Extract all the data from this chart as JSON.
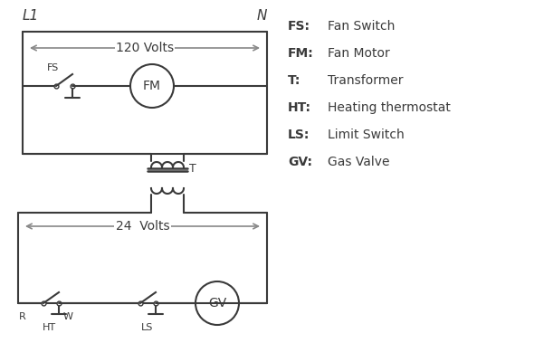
{
  "bg_color": "#ffffff",
  "line_color": "#3a3a3a",
  "arrow_color": "#888888",
  "legend_items": [
    [
      "FS:",
      "Fan Switch"
    ],
    [
      "FM:",
      "Fan Motor"
    ],
    [
      "T:",
      "Transformer"
    ],
    [
      "HT:",
      "Heating thermostat"
    ],
    [
      "LS:",
      "Limit Switch"
    ],
    [
      "GV:",
      "Gas Valve"
    ]
  ],
  "volts_120_label": "120 Volts",
  "volts_24_label": "24  Volts",
  "L1_label": "L1",
  "N_label": "N",
  "T_label": "T",
  "R_label": "R",
  "W_label": "W",
  "HT_label": "HT",
  "LS_label": "LS",
  "FS_label": "FS",
  "FM_label": "FM",
  "GV_label": "GV"
}
